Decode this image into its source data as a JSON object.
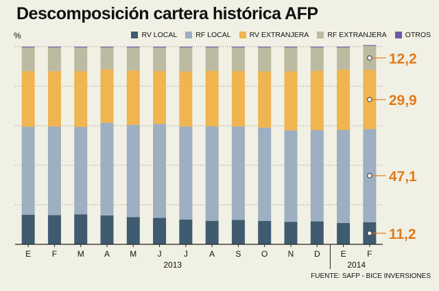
{
  "chart_data": {
    "type": "bar",
    "stacked": true,
    "title": "Descomposición cartera histórica AFP",
    "ylabel": "%",
    "ylim": [
      0,
      100
    ],
    "categories": [
      "E",
      "F",
      "M",
      "A",
      "M",
      "J",
      "J",
      "A",
      "S",
      "O",
      "N",
      "D",
      "E",
      "F"
    ],
    "year_groups": [
      {
        "label": "2013",
        "from": 0,
        "to": 11
      },
      {
        "label": "2014",
        "from": 12,
        "to": 13
      }
    ],
    "series": [
      {
        "name": "RV LOCAL",
        "color": "#3f5b6f",
        "values": [
          15.0,
          14.8,
          15.2,
          14.6,
          13.8,
          13.4,
          12.5,
          11.9,
          12.4,
          11.8,
          11.4,
          11.6,
          10.8,
          11.2
        ]
      },
      {
        "name": "RF LOCAL",
        "color": "#9dafc0",
        "values": [
          44.5,
          44.8,
          44.2,
          46.9,
          46.7,
          47.5,
          47.1,
          47.8,
          47.2,
          47.3,
          46.3,
          46.2,
          47.0,
          47.1
        ]
      },
      {
        "name": "RV EXTRANJERA",
        "color": "#f0b451",
        "values": [
          28.1,
          28.0,
          28.1,
          27.0,
          27.4,
          26.8,
          27.8,
          28.1,
          28.1,
          28.4,
          29.8,
          30.0,
          30.6,
          29.9
        ]
      },
      {
        "name": "RF EXTRANJERA",
        "color": "#bcbaa0",
        "values": [
          12.0,
          12.0,
          12.1,
          11.1,
          11.7,
          11.9,
          12.2,
          11.8,
          11.9,
          12.1,
          12.1,
          11.8,
          11.2,
          12.2
        ]
      },
      {
        "name": "OTROS",
        "color": "#6b5aa6",
        "values": [
          0.4,
          0.4,
          0.4,
          0.4,
          0.4,
          0.4,
          0.4,
          0.4,
          0.4,
          0.4,
          0.4,
          0.4,
          0.4,
          0.4
        ]
      }
    ],
    "annotations": [
      {
        "series": "RF EXTRANJERA",
        "label": "12,2"
      },
      {
        "series": "RV EXTRANJERA",
        "label": "29,9"
      },
      {
        "series": "RF LOCAL",
        "label": "47,1"
      },
      {
        "series": "RV LOCAL",
        "label": "11,2"
      }
    ],
    "annotation_color": "#e07b1a",
    "grid": true
  },
  "source": "FUENTE: SAFP - BICE INVERSIONES"
}
